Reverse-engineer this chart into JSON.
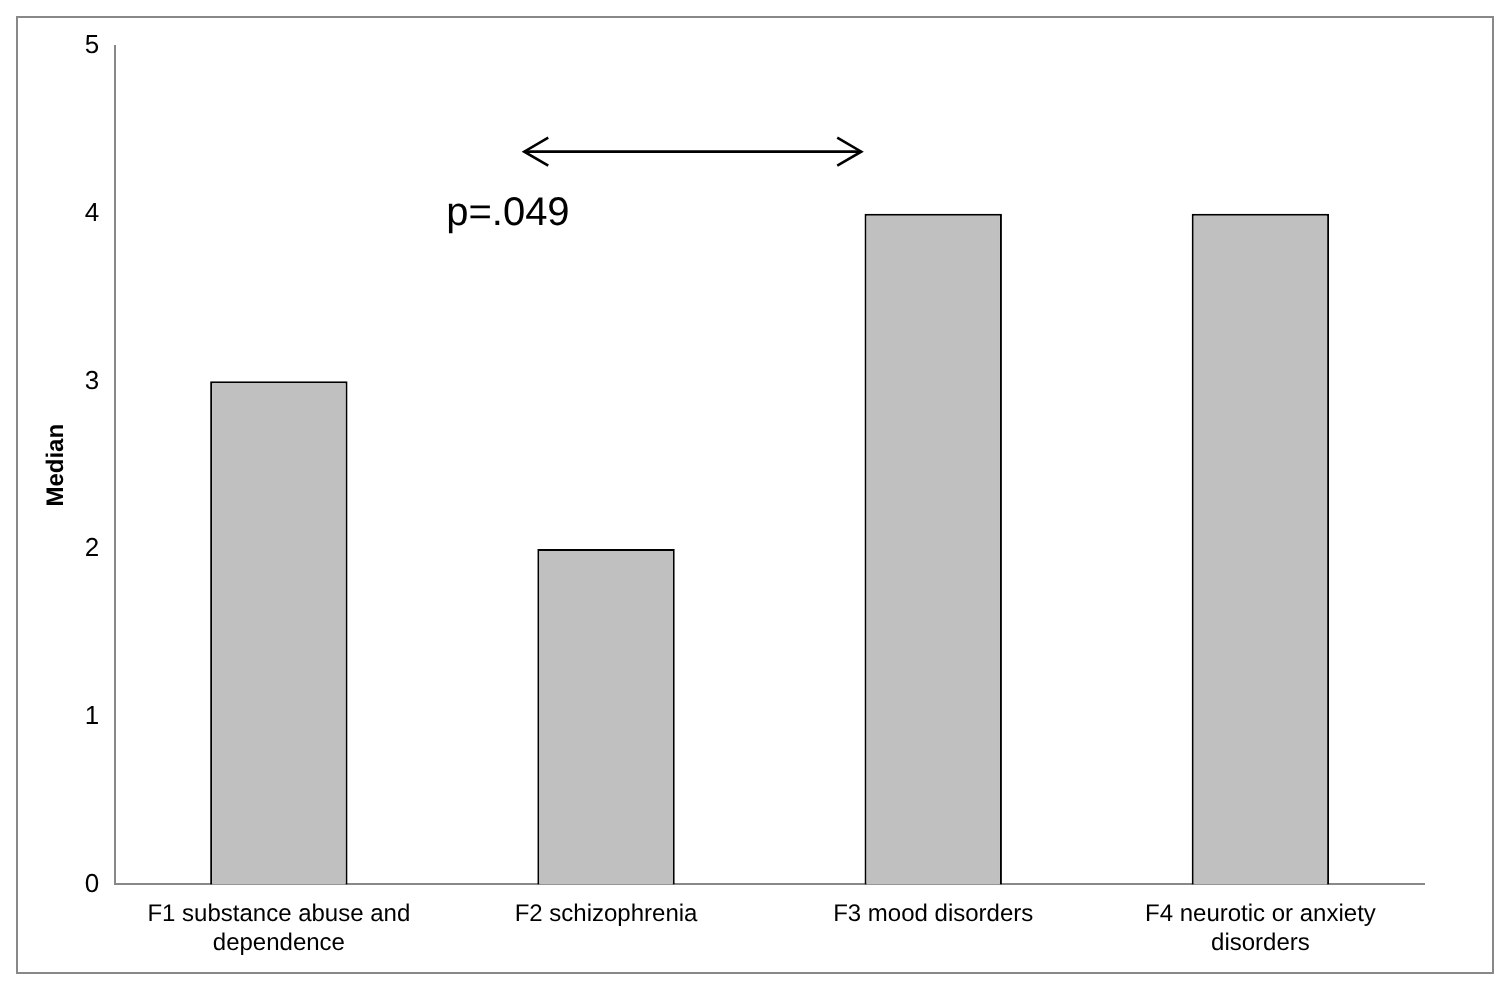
{
  "chart_data": {
    "type": "bar",
    "ylabel": "Median",
    "categories": [
      "F1 substance abuse and dependence",
      "F2 schizophrenia",
      "F3 mood disorders",
      "F4 neurotic or anxiety disorders"
    ],
    "values": [
      3,
      2,
      4,
      4
    ],
    "color": "#c0c0c0",
    "ylim": [
      0,
      5
    ],
    "yticks": [
      0,
      1,
      2,
      3,
      4,
      5
    ],
    "grid": false,
    "legend": false,
    "annotations": [
      "p=.049"
    ]
  }
}
